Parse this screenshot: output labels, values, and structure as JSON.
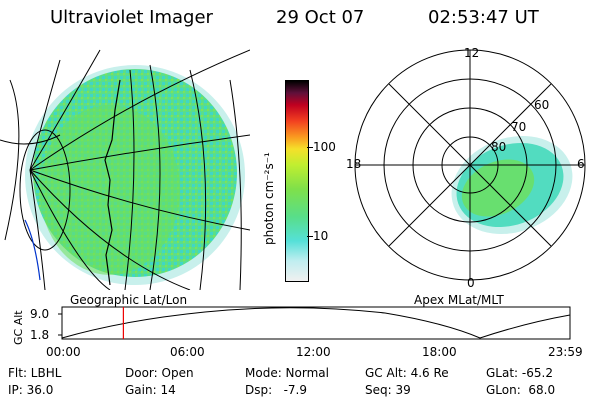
{
  "header": {
    "instrument": "Ultraviolet Imager",
    "date": "29 Oct 07",
    "time": "02:53:47 UT"
  },
  "colorbar": {
    "unit_label": "photon cm⁻²s⁻¹",
    "ticks": [
      "100",
      "10"
    ],
    "scale": "log"
  },
  "geo_panel": {
    "label": "Geographic Lat/Lon"
  },
  "polar_panel": {
    "label": "Apex MLat/MLT",
    "mlt_labels": [
      "12",
      "18",
      "6",
      "0"
    ],
    "lat_labels": [
      "60",
      "70",
      "80"
    ]
  },
  "altitude_plot": {
    "ylabel": "GC Alt",
    "yticks": [
      "9.0",
      "1.8"
    ],
    "xticks": [
      "00:00",
      "06:00",
      "12:00",
      "18:00",
      "23:59"
    ],
    "current_time_hours": 2.9
  },
  "info": {
    "flt": "Flt: LBHL",
    "ip": "IP: 36.0",
    "door": "Door: Open",
    "gain": "Gain: 14",
    "mode": "Mode: Normal",
    "dsp": "Dsp:   -7.9",
    "gc_alt": "GC Alt: 4.6 Re",
    "seq": "Seq: 39",
    "glat": "GLat: -65.2",
    "glon": "GLon:  68.0"
  }
}
